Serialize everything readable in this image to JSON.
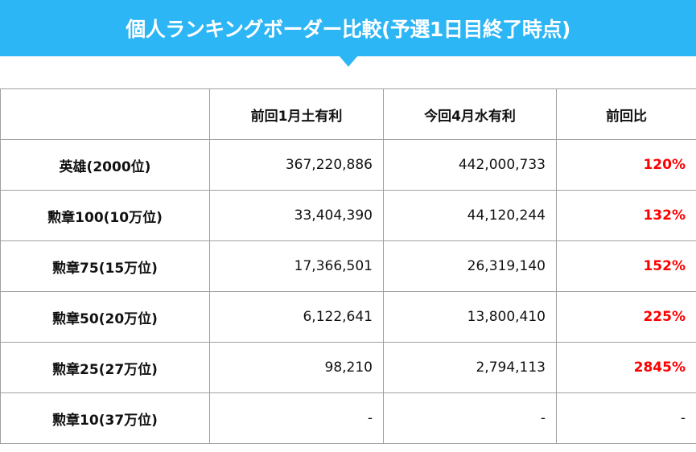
{
  "header": {
    "title": "個人ランキングボーダー比較(予選1日目終了時点)",
    "background_color": "#2db6f5",
    "text_color": "#ffffff"
  },
  "table": {
    "columns": [
      "",
      "前回1月土有利",
      "今回4月水有利",
      "前回比"
    ],
    "ratio_color": "#ff0000",
    "rows": [
      {
        "label": "英雄(2000位)",
        "previous": "367,220,886",
        "current": "442,000,733",
        "ratio": "120%"
      },
      {
        "label": "勲章100(10万位)",
        "previous": "33,404,390",
        "current": "44,120,244",
        "ratio": "132%"
      },
      {
        "label": "勲章75(15万位)",
        "previous": "17,366,501",
        "current": "26,319,140",
        "ratio": "152%"
      },
      {
        "label": "勲章50(20万位)",
        "previous": "6,122,641",
        "current": "13,800,410",
        "ratio": "225%"
      },
      {
        "label": "勲章25(27万位)",
        "previous": "98,210",
        "current": "2,794,113",
        "ratio": "2845%"
      },
      {
        "label": "勲章10(37万位)",
        "previous": "-",
        "current": "-",
        "ratio": "-"
      }
    ]
  }
}
